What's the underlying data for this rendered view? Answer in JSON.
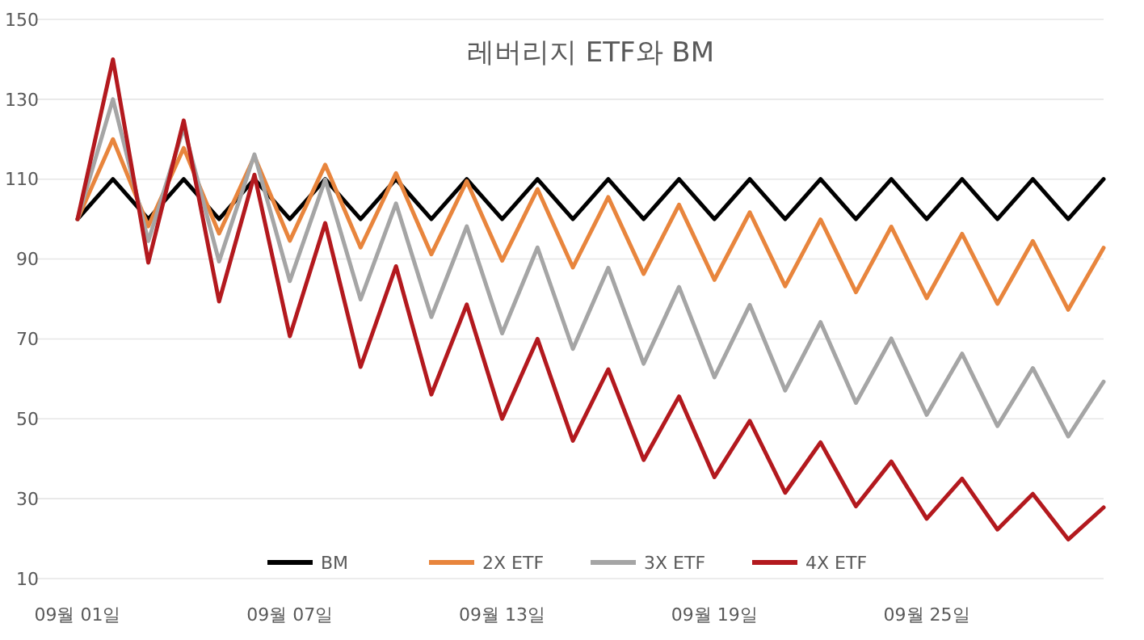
{
  "chart_data": {
    "type": "line",
    "title": "레버리지 ETF와 BM",
    "categories": [
      "09월 01일",
      null,
      null,
      null,
      null,
      null,
      "09월 07일",
      null,
      null,
      null,
      null,
      null,
      "09월 13일",
      null,
      null,
      null,
      null,
      null,
      "09월 19일",
      null,
      null,
      null,
      null,
      null,
      "09월 25일",
      null,
      null,
      null,
      null,
      null
    ],
    "series": [
      {
        "name": "BM",
        "color": "#000000",
        "values": [
          100,
          110,
          100,
          110,
          100,
          110,
          100,
          110,
          100,
          110,
          100,
          110,
          100,
          110,
          100,
          110,
          100,
          110,
          100,
          110,
          100,
          110,
          100,
          110,
          100,
          110,
          100,
          110,
          100,
          110
        ]
      },
      {
        "name": "2X ETF",
        "color": "#e8853d",
        "values": [
          100,
          120,
          98.2,
          117.8,
          96.4,
          115.7,
          94.6,
          113.6,
          92.9,
          111.5,
          91.2,
          109.5,
          89.6,
          107.5,
          87.9,
          105.5,
          86.3,
          103.6,
          84.8,
          101.7,
          83.2,
          99.9,
          81.7,
          98.1,
          80.2,
          96.3,
          78.8,
          94.5,
          77.3,
          92.8
        ]
      },
      {
        "name": "3X ETF",
        "color": "#a5a5a5",
        "values": [
          100,
          130,
          94.5,
          122.9,
          89.4,
          116.2,
          84.5,
          109.9,
          79.9,
          103.9,
          75.5,
          98.2,
          71.4,
          92.9,
          67.5,
          87.8,
          63.8,
          83.0,
          60.4,
          78.5,
          57.1,
          74.2,
          54.0,
          70.1,
          51.0,
          66.3,
          48.2,
          62.7,
          45.6,
          59.3
        ]
      },
      {
        "name": "4X ETF",
        "color": "#b3191e",
        "values": [
          100,
          140,
          89.1,
          124.7,
          79.4,
          111.1,
          70.7,
          99.0,
          63.0,
          88.2,
          56.1,
          78.6,
          50.0,
          70.0,
          44.5,
          62.4,
          39.7,
          55.6,
          35.4,
          49.5,
          31.5,
          44.1,
          28.1,
          39.3,
          25.0,
          35.0,
          22.3,
          31.2,
          19.8,
          27.8
        ]
      }
    ],
    "ylim": [
      10,
      150
    ],
    "yticks": [
      10,
      30,
      50,
      70,
      90,
      110,
      130,
      150
    ],
    "grid": "y",
    "legend": "bottom",
    "marker": "none",
    "line_style": "solid"
  }
}
